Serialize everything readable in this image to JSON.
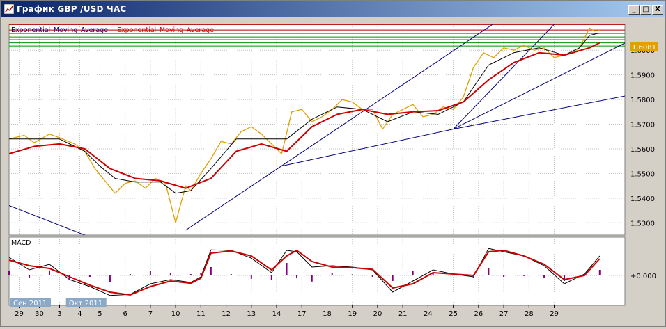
{
  "window": {
    "title": "График GBP /USD  ЧАС",
    "controls": {
      "minimize": "_",
      "maximize": "□",
      "close": "X"
    }
  },
  "colors": {
    "price": "#e0a000",
    "ema_fast": "#000000",
    "ema_slow": "#cc0000",
    "trendline": "#000080",
    "hline_red": "#b00000",
    "hline_green": "#009000",
    "macd_hist": "#800080",
    "price_tag": "#e0a000"
  },
  "chart_data": [
    {
      "type": "line",
      "panel": "price",
      "legend": [
        {
          "text": "Exponential_Moving_Average",
          "color": "#000080"
        },
        {
          "text": "Exponential_Moving_Average",
          "color": "#cc0000"
        }
      ],
      "y_ticks": [
        "1.6000",
        "1.5900",
        "1.5800",
        "1.5700",
        "1.5600",
        "1.5500",
        "1.5400",
        "1.5300"
      ],
      "ylim": [
        1.525,
        1.6105
      ],
      "current_price_label": "1.6081",
      "horizontal_levels": [
        {
          "value": 1.6104,
          "color": "red"
        },
        {
          "value": 1.6082,
          "color": "red"
        },
        {
          "value": 1.6068,
          "color": "green"
        },
        {
          "value": 1.6054,
          "color": "green"
        },
        {
          "value": 1.6043,
          "color": "green"
        },
        {
          "value": 1.603,
          "color": "green"
        },
        {
          "value": 1.6017,
          "color": "green"
        }
      ],
      "x_index_range": [
        0,
        122
      ],
      "series": [
        {
          "kind": "price",
          "x": [
            0,
            3,
            5,
            8,
            10,
            13,
            15,
            17,
            19,
            21,
            23,
            25,
            27,
            29,
            31,
            33,
            35,
            36,
            38,
            40,
            42,
            44,
            46,
            48,
            50,
            52,
            54,
            56,
            58,
            60,
            62,
            64,
            66,
            68,
            70,
            72,
            74,
            76,
            78,
            80,
            82,
            84,
            86,
            88,
            90,
            92,
            94,
            96,
            98,
            100,
            102,
            104,
            106,
            108,
            110,
            112,
            113,
            114,
            115,
            116,
            117
          ],
          "values": [
            1.564,
            1.5655,
            1.5625,
            1.566,
            1.5645,
            1.562,
            1.559,
            1.552,
            1.547,
            1.542,
            1.546,
            1.547,
            1.544,
            1.548,
            1.546,
            1.53,
            1.545,
            1.543,
            1.55,
            1.556,
            1.563,
            1.562,
            1.567,
            1.569,
            1.566,
            1.562,
            1.558,
            1.575,
            1.576,
            1.571,
            1.573,
            1.576,
            1.58,
            1.579,
            1.576,
            1.576,
            1.568,
            1.574,
            1.576,
            1.578,
            1.573,
            1.574,
            1.577,
            1.576,
            1.581,
            1.593,
            1.599,
            1.597,
            1.601,
            1.6,
            1.602,
            1.6,
            1.601,
            1.597,
            1.598,
            1.599,
            1.601,
            1.605,
            1.609,
            1.6078,
            1.6081
          ]
        },
        {
          "kind": "ema_fast",
          "x": [
            0,
            5,
            10,
            15,
            18,
            21,
            25,
            30,
            33,
            36,
            40,
            45,
            50,
            55,
            60,
            65,
            70,
            75,
            80,
            85,
            90,
            95,
            100,
            105,
            110,
            113,
            115,
            117
          ],
          "values": [
            1.564,
            1.564,
            1.564,
            1.559,
            1.553,
            1.548,
            1.5465,
            1.5465,
            1.542,
            1.543,
            1.552,
            1.564,
            1.564,
            1.564,
            1.572,
            1.577,
            1.576,
            1.571,
            1.575,
            1.574,
            1.579,
            1.594,
            1.599,
            1.601,
            1.598,
            1.601,
            1.606,
            1.607
          ]
        },
        {
          "kind": "ema_slow",
          "x": [
            0,
            5,
            10,
            15,
            20,
            25,
            30,
            35,
            40,
            45,
            50,
            55,
            60,
            65,
            70,
            75,
            80,
            85,
            90,
            95,
            100,
            105,
            110,
            115,
            117
          ],
          "values": [
            1.558,
            1.561,
            1.562,
            1.56,
            1.552,
            1.548,
            1.547,
            1.544,
            1.548,
            1.559,
            1.562,
            1.559,
            1.569,
            1.574,
            1.576,
            1.574,
            1.575,
            1.5755,
            1.579,
            1.588,
            1.595,
            1.599,
            1.598,
            1.601,
            1.603
          ]
        }
      ],
      "trendlines": [
        {
          "from": [
            0,
            1.537
          ],
          "to": [
            20,
            1.521
          ]
        },
        {
          "from": [
            35,
            1.527
          ],
          "to": [
            102,
            1.619
          ]
        },
        {
          "from": [
            54,
            1.553
          ],
          "to": [
            88,
            1.568
          ]
        },
        {
          "from": [
            88,
            1.568
          ],
          "to": [
            126,
            1.583
          ]
        },
        {
          "from": [
            88,
            1.568
          ],
          "to": [
            112,
            1.619
          ]
        },
        {
          "from": [
            88,
            1.568
          ],
          "to": [
            126,
            1.607
          ]
        }
      ]
    },
    {
      "type": "line",
      "panel": "macd",
      "title": "MACD",
      "y_ticks": [
        "+0.000"
      ],
      "ylim": [
        -1,
        1
      ],
      "x": [
        0,
        4,
        8,
        12,
        16,
        20,
        24,
        28,
        32,
        36,
        38,
        40,
        44,
        48,
        52,
        55,
        57,
        60,
        64,
        68,
        72,
        76,
        80,
        84,
        88,
        92,
        95,
        98,
        102,
        106,
        110,
        114,
        117
      ],
      "series": [
        {
          "kind": "macd_line",
          "values": [
            0.65,
            0.2,
            0.4,
            -0.15,
            -0.4,
            -0.72,
            -0.68,
            -0.3,
            -0.15,
            -0.25,
            -0.05,
            0.92,
            0.9,
            0.62,
            0.1,
            0.9,
            0.85,
            0.3,
            0.35,
            0.3,
            0.2,
            -0.6,
            -0.2,
            0.2,
            0.05,
            -0.05,
            0.97,
            0.85,
            0.7,
            0.35,
            -0.3,
            0.05,
            0.7
          ]
        },
        {
          "kind": "signal_line",
          "values": [
            0.55,
            0.35,
            0.25,
            -0.05,
            -0.35,
            -0.6,
            -0.7,
            -0.4,
            -0.2,
            -0.28,
            -0.1,
            0.8,
            0.88,
            0.7,
            0.2,
            0.7,
            0.9,
            0.5,
            0.3,
            0.28,
            0.22,
            -0.45,
            -0.3,
            0.1,
            0.05,
            0.0,
            0.85,
            0.9,
            0.7,
            0.4,
            -0.15,
            0.0,
            0.6
          ]
        },
        {
          "kind": "histogram",
          "values": [
            0.15,
            -0.1,
            0.18,
            -0.15,
            -0.05,
            -0.25,
            0.05,
            0.15,
            0.08,
            0.05,
            0.08,
            0.3,
            0.05,
            -0.12,
            -0.15,
            0.45,
            -0.1,
            -0.22,
            0.08,
            0.04,
            -0.05,
            -0.2,
            0.15,
            0.12,
            0.02,
            -0.08,
            0.25,
            -0.05,
            -0.02,
            -0.08,
            -0.2,
            0.1,
            0.2
          ]
        }
      ]
    }
  ],
  "x_axis": {
    "labels": [
      {
        "index": 2,
        "text": "29"
      },
      {
        "index": 6,
        "text": "30"
      },
      {
        "index": 10,
        "text": "3"
      },
      {
        "index": 14,
        "text": "4"
      },
      {
        "index": 18,
        "text": "5"
      },
      {
        "index": 23,
        "text": "6"
      },
      {
        "index": 28,
        "text": "7"
      },
      {
        "index": 33,
        "text": "10"
      },
      {
        "index": 38,
        "text": "11"
      },
      {
        "index": 43,
        "text": "12"
      },
      {
        "index": 48,
        "text": "13"
      },
      {
        "index": 53,
        "text": "14"
      },
      {
        "index": 58,
        "text": "17"
      },
      {
        "index": 63,
        "text": "18"
      },
      {
        "index": 68,
        "text": "19"
      },
      {
        "index": 73,
        "text": "20"
      },
      {
        "index": 78,
        "text": "21"
      },
      {
        "index": 83,
        "text": "24"
      },
      {
        "index": 88,
        "text": "25"
      },
      {
        "index": 93,
        "text": "26"
      },
      {
        "index": 98,
        "text": "27"
      },
      {
        "index": 103,
        "text": "28"
      },
      {
        "index": 108,
        "text": "29"
      }
    ],
    "period_labels": [
      {
        "index": 0,
        "text": "Сен 2011"
      },
      {
        "index": 11,
        "text": "Окт 2011"
      }
    ]
  }
}
